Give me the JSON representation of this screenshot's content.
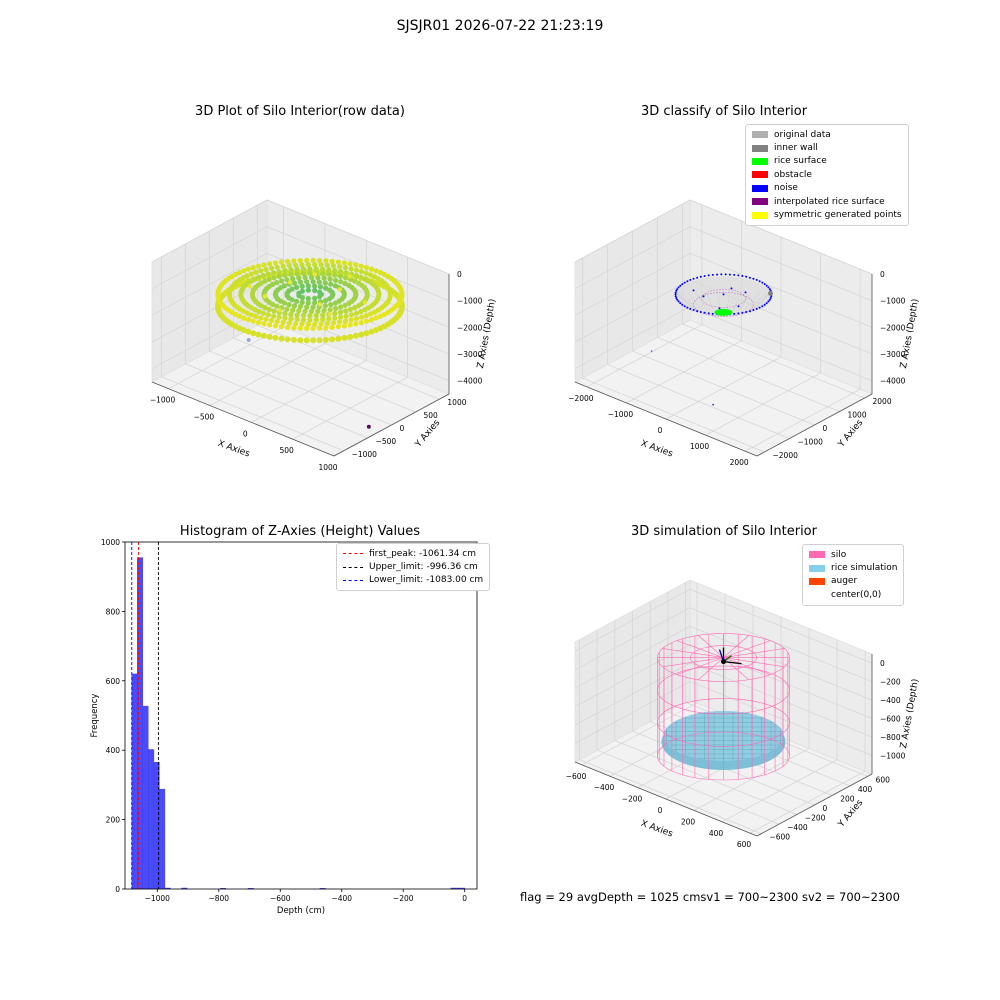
{
  "suptitle": "SJSJR01 2026-07-22 21:23:19",
  "footer": {
    "text": "flag = 29  avgDepth = 1025 cmsv1 = 700~2300  sv2 = 700~2300"
  },
  "colors": {
    "histogram_bar": "#4a4aff",
    "first_peak_line": "#ff0000",
    "upper_limit_line": "#000000",
    "lower_limit_line": "#0000ff",
    "silo_wire": "#ff69b4",
    "rice_sim": "#87ceeb",
    "pane": "#f2f2f2",
    "grid": "#d8d8d8"
  },
  "chart_data": [
    {
      "type": "scatter",
      "id": "raw",
      "title": "3D Plot of Silo Interior(row data)",
      "xlabel": "X Axies",
      "ylabel": "Y Axies",
      "zlabel": "Z Axies (Depth)",
      "xlim": [
        -1200,
        1000
      ],
      "ylim": [
        -1200,
        1200
      ],
      "zlim": [
        -4500,
        0
      ],
      "xticks": [
        "−1000",
        "−500",
        "0",
        "500",
        "1000"
      ],
      "yticks": [
        "−1000",
        "−500",
        "0",
        "500",
        "1000"
      ],
      "zticks": [
        "0",
        "−1000",
        "−2000",
        "−3000",
        "−4000"
      ],
      "surface": {
        "shape": "ellipsoidal disc",
        "depth": -1050,
        "colormap": "viridis (green–yellow)"
      },
      "outliers": [
        {
          "x": -900,
          "y": 300,
          "z": -4000,
          "color": "#9aa9d8"
        },
        {
          "x": 900,
          "y": -300,
          "z": -4400,
          "color": "#5a1060"
        }
      ]
    },
    {
      "type": "scatter",
      "id": "classify",
      "title": "3D classify of Silo Interior",
      "xlabel": "X Axies",
      "ylabel": "Y Axies",
      "zlabel": "Z Axies (Depth)",
      "xlim": [
        -2300,
        2300
      ],
      "ylim": [
        -2300,
        2300
      ],
      "zlim": [
        -4500,
        0
      ],
      "xticks": [
        "−2000",
        "−1000",
        "0",
        "1000",
        "2000"
      ],
      "yticks": [
        "−2000",
        "−1000",
        "0",
        "1000",
        "2000"
      ],
      "zticks": [
        "0",
        "−1000",
        "−2000",
        "−3000",
        "−4000"
      ],
      "legend": [
        {
          "label": "original data",
          "color": "#b0b0b0"
        },
        {
          "label": "inner wall",
          "color": "#808080"
        },
        {
          "label": "rice surface",
          "color": "#00ff00"
        },
        {
          "label": "obstacle",
          "color": "#ff0000"
        },
        {
          "label": "noise",
          "color": "#0000ff"
        },
        {
          "label": "interpolated rice surface",
          "color": "#800080"
        },
        {
          "label": "symmetric generated points",
          "color": "#ffff00"
        }
      ]
    },
    {
      "type": "bar",
      "id": "histogram",
      "title": "Histogram of Z-Axies (Height) Values",
      "xlabel": "Depth (cm)",
      "ylabel": "Frequency",
      "xlim": [
        -1105,
        40
      ],
      "ylim": [
        0,
        1000
      ],
      "xticks": [
        {
          "v": -1000,
          "label": "−1000"
        },
        {
          "v": -800,
          "label": "−800"
        },
        {
          "v": -600,
          "label": "−600"
        },
        {
          "v": -400,
          "label": "−400"
        },
        {
          "v": -200,
          "label": "−200"
        },
        {
          "v": 0,
          "label": "0"
        }
      ],
      "yticks": [
        {
          "v": 0,
          "label": "0"
        },
        {
          "v": 200,
          "label": "200"
        },
        {
          "v": 400,
          "label": "400"
        },
        {
          "v": 600,
          "label": "600"
        },
        {
          "v": 800,
          "label": "800"
        },
        {
          "v": 1000,
          "label": "1000"
        }
      ],
      "bins": [
        {
          "from": -1083,
          "to": -1065,
          "count": 620
        },
        {
          "from": -1065,
          "to": -1047,
          "count": 955
        },
        {
          "from": -1047,
          "to": -1029,
          "count": 527
        },
        {
          "from": -1029,
          "to": -1011,
          "count": 402
        },
        {
          "from": -1011,
          "to": -993,
          "count": 365
        },
        {
          "from": -993,
          "to": -975,
          "count": 288
        },
        {
          "from": -975,
          "to": -957,
          "count": 3
        },
        {
          "from": -921,
          "to": -903,
          "count": 3
        },
        {
          "from": -795,
          "to": -777,
          "count": 2
        },
        {
          "from": -705,
          "to": -687,
          "count": 2
        },
        {
          "from": -471,
          "to": -453,
          "count": 2
        },
        {
          "from": -45,
          "to": 0,
          "count": 3
        }
      ],
      "vlines": [
        {
          "label": "first_peak: -1061.34 cm",
          "x": -1061.34,
          "color": "#ff0000"
        },
        {
          "label": "Upper_limit: -996.36 cm",
          "x": -996.36,
          "color": "#000000"
        },
        {
          "label": "Lower_limit: -1083.00 cm",
          "x": -1083.0,
          "color": "#0000ff"
        }
      ]
    },
    {
      "type": "scatter",
      "id": "simulation",
      "title": "3D simulation of Silo Interior",
      "xlabel": "X Axies",
      "ylabel": "Y Axies",
      "zlabel": "Z Axies (Depth)",
      "xlim": [
        -650,
        650
      ],
      "ylim": [
        -650,
        650
      ],
      "zlim": [
        -1200,
        100
      ],
      "xticks": [
        "−600",
        "−400",
        "−200",
        "0",
        "200",
        "400",
        "600"
      ],
      "yticks": [
        "−600",
        "−400",
        "−200",
        "0",
        "200",
        "400",
        "600"
      ],
      "zticks": [
        "0",
        "−200",
        "−400",
        "−600",
        "−800",
        "−1000"
      ],
      "legend": [
        {
          "label": "silo",
          "color": "#ff69b4"
        },
        {
          "label": "rice simulation",
          "color": "#87ceeb"
        },
        {
          "label": "auger",
          "color": "#ff4500"
        },
        {
          "label": "center(0,0)",
          "color": ""
        }
      ]
    }
  ]
}
